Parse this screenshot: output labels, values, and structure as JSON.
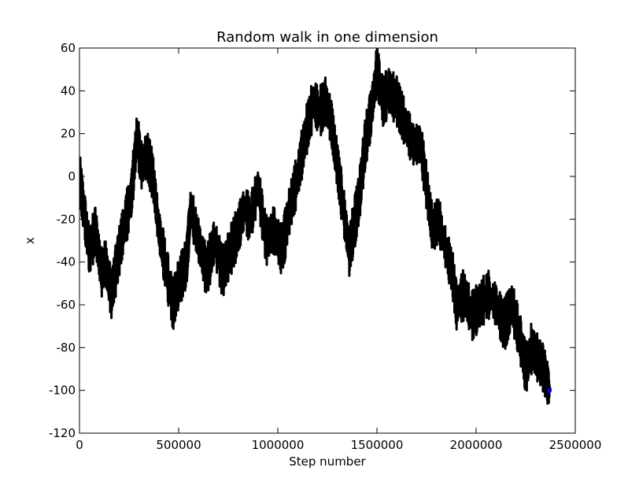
{
  "chart_data": {
    "type": "line",
    "title": "Random walk in one dimension",
    "xlabel": "Step number",
    "ylabel": "x",
    "xlim": [
      0,
      2500000
    ],
    "ylim": [
      -120,
      60
    ],
    "xticks": [
      0,
      500000,
      1000000,
      1500000,
      2000000,
      2500000
    ],
    "yticks": [
      -120,
      -100,
      -80,
      -60,
      -40,
      -20,
      0,
      20,
      40,
      60
    ],
    "grid": false,
    "series": [
      {
        "color": "#000000",
        "end_marker_color": "#0000ff",
        "x": [
          0,
          20000,
          50000,
          80000,
          110000,
          130000,
          160000,
          190000,
          220000,
          260000,
          290000,
          310000,
          340000,
          370000,
          400000,
          430000,
          470000,
          500000,
          540000,
          560000,
          600000,
          640000,
          680000,
          720000,
          760000,
          800000,
          830000,
          860000,
          900000,
          940000,
          980000,
          1020000,
          1060000,
          1100000,
          1140000,
          1180000,
          1210000,
          1240000,
          1270000,
          1300000,
          1330000,
          1360000,
          1380000,
          1410000,
          1440000,
          1470000,
          1500000,
          1530000,
          1560000,
          1600000,
          1640000,
          1680000,
          1720000,
          1750000,
          1780000,
          1810000,
          1850000,
          1880000,
          1900000,
          1940000,
          1980000,
          2020000,
          2060000,
          2100000,
          2140000,
          2180000,
          2220000,
          2250000,
          2280000,
          2310000,
          2340000,
          2370000
        ],
        "y": [
          0,
          -15,
          -35,
          -25,
          -45,
          -40,
          -55,
          -40,
          -25,
          -10,
          20,
          5,
          10,
          0,
          -25,
          -40,
          -60,
          -50,
          -40,
          -15,
          -30,
          -45,
          -30,
          -45,
          -35,
          -25,
          -15,
          -20,
          -5,
          -30,
          -25,
          -35,
          -15,
          0,
          20,
          35,
          30,
          35,
          25,
          5,
          -15,
          -35,
          -25,
          -10,
          15,
          30,
          50,
          35,
          40,
          35,
          25,
          15,
          15,
          -5,
          -25,
          -20,
          -35,
          -45,
          -60,
          -55,
          -65,
          -60,
          -55,
          -60,
          -70,
          -60,
          -75,
          -90,
          -80,
          -85,
          -90,
          -100
        ]
      }
    ]
  }
}
